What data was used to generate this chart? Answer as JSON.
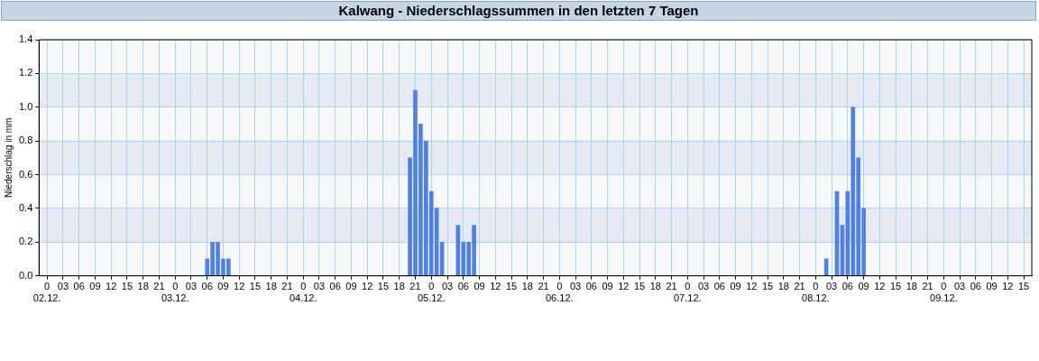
{
  "chart_data": {
    "type": "bar",
    "title": "Kalwang - Niederschlagssummen in den letzten 7 Tagen",
    "ylabel": "Niederschlag in mm",
    "categories": [
      null,
      "0\n02.12.",
      null,
      null,
      "03",
      null,
      null,
      "06",
      null,
      null,
      "09",
      null,
      null,
      "12",
      null,
      null,
      "15",
      null,
      null,
      "18",
      null,
      null,
      "21",
      null,
      null,
      "0\n03.12.",
      null,
      null,
      "03",
      null,
      null,
      "06",
      null,
      null,
      "09",
      null,
      null,
      "12",
      null,
      null,
      "15",
      null,
      null,
      "18",
      null,
      null,
      "21",
      null,
      null,
      "0\n04.12.",
      null,
      null,
      "03",
      null,
      null,
      "06",
      null,
      null,
      "09",
      null,
      null,
      "12",
      null,
      null,
      "15",
      null,
      null,
      "18",
      null,
      null,
      "21",
      null,
      null,
      "0\n05.12.",
      null,
      null,
      "03",
      null,
      null,
      "06",
      null,
      null,
      "09",
      null,
      null,
      "12",
      null,
      null,
      "15",
      null,
      null,
      "18",
      null,
      null,
      "21",
      null,
      null,
      "0\n06.12.",
      null,
      null,
      "03",
      null,
      null,
      "06",
      null,
      null,
      "09",
      null,
      null,
      "12",
      null,
      null,
      "15",
      null,
      null,
      "18",
      null,
      null,
      "21",
      null,
      null,
      "0\n07.12.",
      null,
      null,
      "03",
      null,
      null,
      "06",
      null,
      null,
      "09",
      null,
      null,
      "12",
      null,
      null,
      "15",
      null,
      null,
      "18",
      null,
      null,
      "21",
      null,
      null,
      "0\n08.12.",
      null,
      null,
      "03",
      null,
      null,
      "06",
      null,
      null,
      "09",
      null,
      null,
      "12",
      null,
      null,
      "15",
      null,
      null,
      "18",
      null,
      null,
      "21",
      null,
      null,
      "0\n09.12.",
      null,
      null,
      "03",
      null,
      null,
      "06",
      null,
      null,
      "09",
      null,
      null,
      "12",
      null,
      null,
      "15",
      null
    ],
    "values": [
      null,
      null,
      null,
      null,
      null,
      null,
      null,
      null,
      null,
      null,
      null,
      null,
      null,
      null,
      null,
      null,
      null,
      null,
      null,
      null,
      null,
      null,
      null,
      null,
      null,
      null,
      null,
      null,
      null,
      null,
      null,
      0.1,
      0.2,
      0.2,
      0.1,
      0.1,
      null,
      null,
      null,
      null,
      null,
      null,
      null,
      null,
      null,
      null,
      null,
      null,
      null,
      null,
      null,
      null,
      null,
      null,
      null,
      null,
      null,
      null,
      null,
      null,
      null,
      null,
      null,
      null,
      null,
      null,
      null,
      null,
      null,
      0.7,
      1.1,
      0.9,
      0.8,
      0.5,
      0.4,
      0.2,
      null,
      null,
      0.3,
      0.2,
      0.2,
      0.3,
      null,
      null,
      null,
      null,
      null,
      null,
      null,
      null,
      null,
      null,
      null,
      null,
      null,
      null,
      null,
      null,
      null,
      null,
      null,
      null,
      null,
      null,
      null,
      null,
      null,
      null,
      null,
      null,
      null,
      null,
      null,
      null,
      null,
      null,
      null,
      null,
      null,
      null,
      null,
      null,
      null,
      null,
      null,
      null,
      null,
      null,
      null,
      null,
      null,
      null,
      null,
      null,
      null,
      null,
      null,
      null,
      null,
      null,
      null,
      null,
      null,
      null,
      null,
      null,
      null,
      0.1,
      null,
      0.5,
      0.3,
      0.5,
      1.0,
      0.7,
      0.4,
      null,
      null,
      null,
      null,
      null,
      null,
      null,
      null,
      null,
      null,
      null,
      null,
      null,
      null,
      null,
      null,
      null,
      null,
      null,
      null,
      null,
      null,
      null,
      null,
      null,
      null,
      null,
      null,
      null,
      null,
      null
    ],
    "color": "#5080e0",
    "ylim": [
      0,
      1.4
    ],
    "yticks": [
      {
        "value": 0,
        "label": "0.0"
      },
      0.2,
      0.4,
      0.6,
      0.8,
      {
        "value": 1,
        "label": "1.0"
      },
      1.2,
      1.4
    ],
    "bands": [
      {
        "axis": "y",
        "from": 0.2,
        "to": 0.4,
        "color": "#e5eaf2"
      },
      {
        "axis": "y",
        "from": 0.6,
        "to": 0.8,
        "color": "#e5eaf2"
      },
      {
        "axis": "y",
        "from": 1.0,
        "to": 1.2,
        "color": "#e5eaf2"
      }
    ],
    "grid": true
  }
}
